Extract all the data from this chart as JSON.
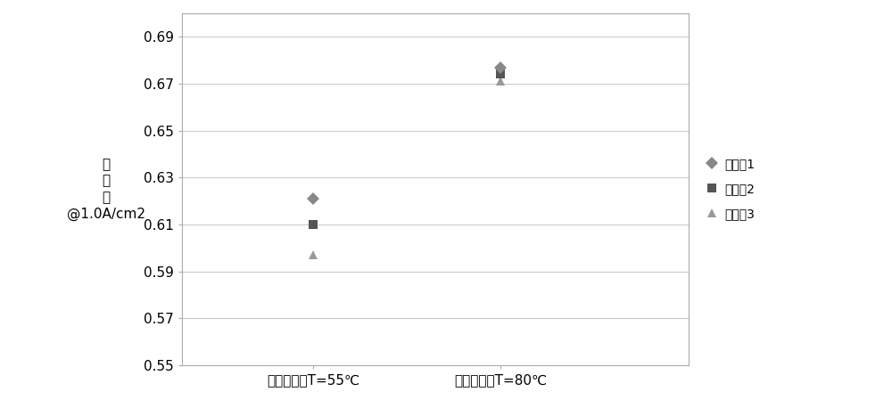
{
  "categories": [
    "冷却剂出口T=55℃",
    "冷却剂出口T=80℃"
  ],
  "series": [
    {
      "name": "实施入1",
      "values": [
        0.621,
        0.677
      ],
      "marker": "D",
      "color": "#888888",
      "markersize": 7,
      "zorder": 3
    },
    {
      "name": "实施入2",
      "values": [
        0.61,
        0.674
      ],
      "marker": "s",
      "color": "#555555",
      "markersize": 7,
      "zorder": 2
    },
    {
      "name": "实施入3",
      "values": [
        0.597,
        0.671
      ],
      "marker": "^",
      "color": "#999999",
      "markersize": 7,
      "zorder": 1
    }
  ],
  "ylabel_lines": [
    "电",
    "压",
    "値",
    "@1.0A/cm2"
  ],
  "ylim": [
    0.55,
    0.7
  ],
  "yticks": [
    0.55,
    0.57,
    0.59,
    0.61,
    0.63,
    0.65,
    0.67,
    0.69
  ],
  "x_positions": [
    1,
    2
  ],
  "xlim": [
    0.3,
    3.0
  ],
  "background_color": "#ffffff",
  "grid_color": "#cccccc",
  "font_size": 11,
  "legend_fontsize": 10,
  "tick_fontsize": 11
}
